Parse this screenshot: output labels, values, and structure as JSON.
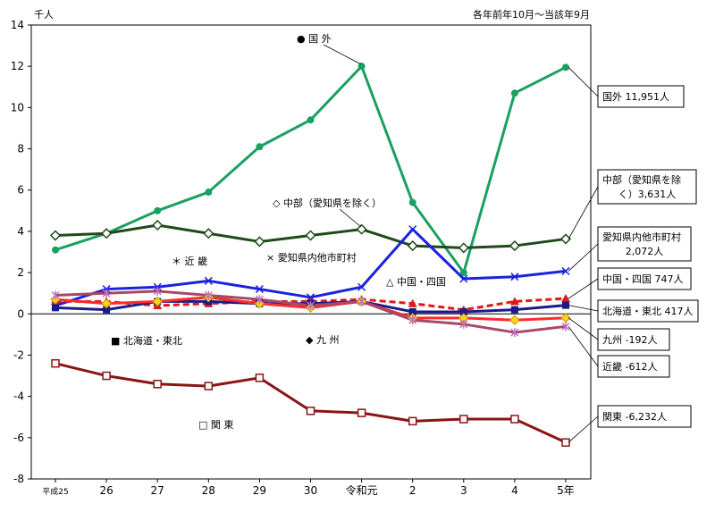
{
  "chart_data": {
    "type": "line",
    "unit_label": "千人",
    "period_note": "各年前年10月～当該年9月",
    "ylim": [
      -8,
      14
    ],
    "yticks": [
      14,
      12,
      10,
      8,
      6,
      4,
      2,
      0,
      -2,
      -4,
      -6,
      -8
    ],
    "categories": [
      "平成25",
      "26",
      "27",
      "28",
      "29",
      "30",
      "令和元",
      "2",
      "3",
      "4",
      "5年"
    ],
    "series": [
      {
        "key": "kokugai",
        "name": "国 外",
        "marker_label": "● 国 外",
        "color": "#1aa060",
        "marker": "circle-filled",
        "dash": false,
        "width": 3,
        "values": [
          3.1,
          3.9,
          5.0,
          5.9,
          8.1,
          9.4,
          12.0,
          5.4,
          2.0,
          10.7,
          11.951
        ],
        "end_note": "国外 11,951人"
      },
      {
        "key": "chubu",
        "name": "中部（愛知県を除く）",
        "marker_label": "◇ 中部（愛知県を除く）",
        "color": "#1f4a1a",
        "marker": "diamond-open",
        "dash": false,
        "width": 3,
        "values": [
          3.8,
          3.9,
          4.3,
          3.9,
          3.5,
          3.8,
          4.1,
          3.3,
          3.2,
          3.3,
          3.631
        ],
        "end_note": "中部（愛知県を除く）3,631人"
      },
      {
        "key": "aichi",
        "name": "愛知県内他市町村",
        "marker_label": "× 愛知県内他市町村",
        "color": "#1a22e0",
        "marker": "x",
        "dash": false,
        "width": 3,
        "values": [
          0.4,
          1.2,
          1.3,
          1.6,
          1.2,
          0.8,
          1.3,
          4.1,
          1.7,
          1.8,
          2.072
        ],
        "end_note": "愛知県内他市町村 2,072人"
      },
      {
        "key": "chugoku",
        "name": "中国・四国",
        "marker_label": "△ 中国・四国",
        "color": "#e01818",
        "marker": "triangle",
        "dash": true,
        "width": 3,
        "values": [
          0.6,
          0.6,
          0.4,
          0.5,
          0.6,
          0.6,
          0.7,
          0.5,
          0.2,
          0.6,
          0.747
        ],
        "end_note": "中国・四国 747人"
      },
      {
        "key": "hokkaido",
        "name": "北海道・東北",
        "marker_label": "■ 北海道・東北",
        "color": "#1a1a8a",
        "marker": "square",
        "dash": false,
        "width": 3,
        "values": [
          0.3,
          0.2,
          0.6,
          0.6,
          0.5,
          0.5,
          0.6,
          0.1,
          0.1,
          0.2,
          0.417
        ],
        "end_note": "北海道・東北 417人"
      },
      {
        "key": "kyushu",
        "name": "九 州",
        "marker_label": "◆ 九 州",
        "color": "#ff2a2a",
        "marker": "diamond-yellow",
        "dash": false,
        "width": 3,
        "values": [
          0.7,
          0.5,
          0.6,
          0.8,
          0.5,
          0.3,
          0.6,
          -0.2,
          -0.2,
          -0.3,
          -0.192
        ],
        "end_note": "九州 -192人"
      },
      {
        "key": "kinki",
        "name": "近 畿",
        "marker_label": "＊ 近 畿",
        "color": "#a84868",
        "marker": "asterisk",
        "dash": false,
        "width": 3,
        "values": [
          0.9,
          1.0,
          1.1,
          0.9,
          0.7,
          0.4,
          0.6,
          -0.3,
          -0.5,
          -0.9,
          -0.612
        ],
        "end_note": "近畿 -612人"
      },
      {
        "key": "kanto",
        "name": "関 東",
        "marker_label": "□ 関 東",
        "color": "#8b1414",
        "marker": "square-open",
        "dash": false,
        "width": 3,
        "values": [
          -2.4,
          -3.0,
          -3.4,
          -3.5,
          -3.1,
          -4.7,
          -4.8,
          -5.2,
          -5.1,
          -5.1,
          -6.232
        ],
        "end_note": "関東 -6,232人"
      }
    ]
  }
}
